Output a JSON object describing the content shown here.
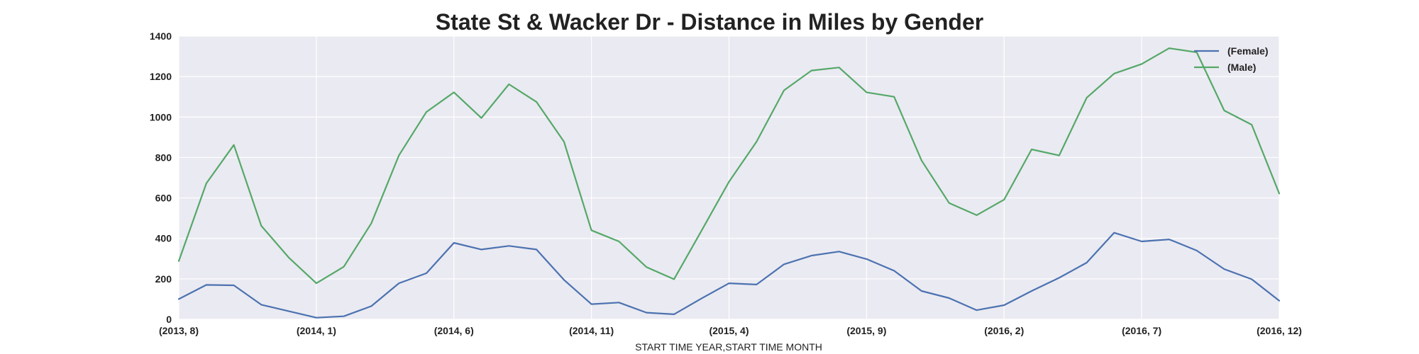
{
  "chart_data": {
    "type": "line",
    "title": "State St & Wacker Dr - Distance in Miles by Gender",
    "xlabel": "START TIME YEAR,START TIME MONTH",
    "ylabel": "",
    "ylim": [
      0,
      1400
    ],
    "yticks": [
      0,
      200,
      400,
      600,
      800,
      1000,
      1200,
      1400
    ],
    "grid": true,
    "legend_position": "top-right",
    "x_tick_labels": [
      "(2013, 8)",
      "(2014, 1)",
      "(2014, 6)",
      "(2014, 11)",
      "(2015, 4)",
      "(2015, 9)",
      "(2016, 2)",
      "(2016, 7)",
      "(2016, 12)"
    ],
    "x_tick_indices": [
      0,
      5,
      10,
      15,
      20,
      25,
      30,
      35,
      40
    ],
    "categories": [
      "(2013, 8)",
      "(2013, 9)",
      "(2013, 10)",
      "(2013, 11)",
      "(2013, 12)",
      "(2014, 1)",
      "(2014, 2)",
      "(2014, 3)",
      "(2014, 4)",
      "(2014, 5)",
      "(2014, 6)",
      "(2014, 7)",
      "(2014, 8)",
      "(2014, 9)",
      "(2014, 10)",
      "(2014, 11)",
      "(2014, 12)",
      "(2015, 1)",
      "(2015, 2)",
      "(2015, 3)",
      "(2015, 4)",
      "(2015, 5)",
      "(2015, 6)",
      "(2015, 7)",
      "(2015, 8)",
      "(2015, 9)",
      "(2015, 10)",
      "(2015, 11)",
      "(2015, 12)",
      "(2016, 1)",
      "(2016, 2)",
      "(2016, 3)",
      "(2016, 4)",
      "(2016, 5)",
      "(2016, 6)",
      "(2016, 7)",
      "(2016, 8)",
      "(2016, 9)",
      "(2016, 10)",
      "(2016, 11)",
      "(2016, 12)"
    ],
    "series": [
      {
        "name": "(Female)",
        "color": "#4c72b0",
        "values": [
          100,
          170,
          168,
          72,
          40,
          8,
          15,
          65,
          178,
          228,
          378,
          345,
          363,
          345,
          195,
          75,
          83,
          33,
          25,
          103,
          178,
          172,
          272,
          315,
          335,
          298,
          240,
          140,
          105,
          45,
          70,
          140,
          205,
          280,
          428,
          385,
          395,
          340,
          248,
          198,
          92
        ]
      },
      {
        "name": "(Male)",
        "color": "#55a868",
        "values": [
          288,
          672,
          862,
          462,
          305,
          178,
          260,
          475,
          810,
          1025,
          1122,
          995,
          1162,
          1075,
          878,
          440,
          385,
          258,
          198,
          438,
          680,
          878,
          1132,
          1230,
          1245,
          1122,
          1100,
          785,
          575,
          515,
          592,
          840,
          810,
          1095,
          1215,
          1262,
          1340,
          1320,
          1032,
          962,
          622
        ]
      }
    ]
  }
}
